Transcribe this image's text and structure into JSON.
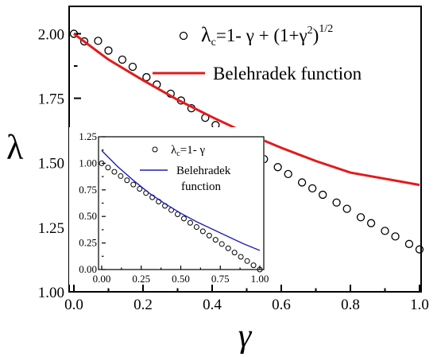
{
  "chart_data": [
    {
      "type": "line",
      "title": "",
      "xlabel": "γ",
      "ylabel": "λ",
      "xlim": [
        0.0,
        1.0
      ],
      "ylim": [
        1.0,
        2.1
      ],
      "xticks": [
        "0.0",
        "0.2",
        "0.4",
        "0.6",
        "0.8",
        "1.0"
      ],
      "yticks": [
        "1.00",
        "1.25",
        "1.50",
        "1.75",
        "2.00"
      ],
      "legend_position": "top-right",
      "series": [
        {
          "name_parts": {
            "lambda": "λ",
            "sub": "c",
            "expr": "=1- γ + (1+γ",
            "sq": "2",
            "close": ")",
            "exp": "1/2"
          },
          "marker": "circle",
          "color": "#000000",
          "x": [
            0.0,
            0.03,
            0.07,
            0.1,
            0.14,
            0.17,
            0.21,
            0.24,
            0.28,
            0.31,
            0.34,
            0.38,
            0.41,
            0.45,
            0.48,
            0.52,
            0.55,
            0.59,
            0.62,
            0.66,
            0.69,
            0.72,
            0.76,
            0.79,
            0.83,
            0.86,
            0.9,
            0.93,
            0.97,
            1.0
          ],
          "y": [
            2.0,
            1.9704,
            1.9724,
            1.935,
            1.8998,
            1.872,
            1.8317,
            1.8033,
            1.7676,
            1.7413,
            1.7113,
            1.6743,
            1.6461,
            1.6037,
            1.5755,
            1.5398,
            1.5142,
            1.4831,
            1.4563,
            1.4238,
            1.401,
            1.3761,
            1.3458,
            1.3215,
            1.2889,
            1.2659,
            1.2362,
            1.2146,
            1.1854,
            1.1642
          ]
        },
        {
          "name": "Belehradek function",
          "color": "#e31a1c",
          "x": [
            0.0,
            0.1,
            0.2,
            0.3,
            0.4,
            0.5,
            0.6,
            0.7,
            0.8,
            0.9,
            1.0
          ],
          "y": [
            2.0,
            1.9,
            1.82,
            1.744,
            1.677,
            1.614,
            1.558,
            1.507,
            1.462,
            1.438,
            1.414
          ]
        }
      ]
    },
    {
      "type": "line",
      "title": "",
      "xlabel": "",
      "ylabel": "",
      "xlim": [
        0.0,
        1.0
      ],
      "ylim": [
        0.0,
        1.25
      ],
      "xticks": [
        "0.00",
        "0.25",
        "0.50",
        "0.75",
        "1.00"
      ],
      "yticks": [
        "0.00",
        "0.25",
        "0.50",
        "0.75",
        "1.00",
        "1.25"
      ],
      "legend_position": "top-right",
      "series": [
        {
          "name_parts": {
            "lambda": "λ",
            "sub": "c",
            "expr": "=1- γ"
          },
          "marker": "circle",
          "color": "#000000",
          "x": [
            0.0,
            0.04,
            0.08,
            0.12,
            0.16,
            0.2,
            0.24,
            0.28,
            0.32,
            0.36,
            0.4,
            0.44,
            0.48,
            0.52,
            0.56,
            0.6,
            0.64,
            0.68,
            0.72,
            0.76,
            0.8,
            0.84,
            0.88,
            0.92,
            0.96,
            1.0
          ],
          "y": [
            1.0,
            0.96,
            0.92,
            0.88,
            0.84,
            0.8,
            0.76,
            0.72,
            0.68,
            0.64,
            0.6,
            0.56,
            0.52,
            0.48,
            0.44,
            0.4,
            0.36,
            0.32,
            0.28,
            0.24,
            0.2,
            0.16,
            0.12,
            0.08,
            0.04,
            0.0
          ]
        },
        {
          "name_lines": [
            "Belehradek",
            "function"
          ],
          "color": "#1f1fb4",
          "x": [
            0.0,
            0.1,
            0.2,
            0.3,
            0.4,
            0.5,
            0.6,
            0.7,
            0.8,
            0.9,
            1.0
          ],
          "y": [
            1.12,
            0.97,
            0.84,
            0.72,
            0.62,
            0.53,
            0.45,
            0.38,
            0.31,
            0.24,
            0.18
          ]
        }
      ]
    }
  ]
}
